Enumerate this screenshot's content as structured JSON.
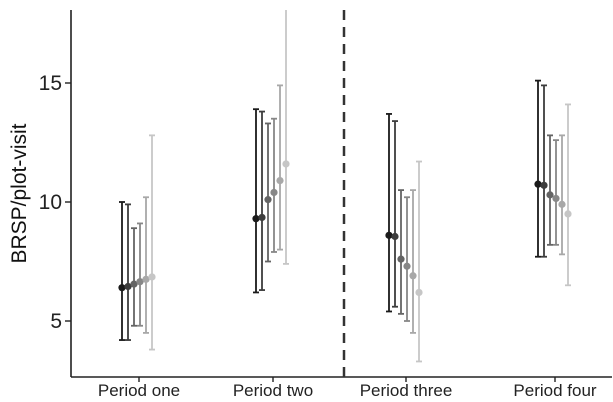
{
  "chart_data": {
    "type": "scatter",
    "title": "",
    "xlabel": "",
    "ylabel": "BRSP/plot-visit",
    "categories": [
      "Period one",
      "Period two",
      "Period three",
      "Period four"
    ],
    "y_ticks": [
      5,
      10,
      15
    ],
    "ylim": [
      1.9,
      18.3
    ],
    "grid": false,
    "legend": "none",
    "divider_after_category": "Period two",
    "shade_colors": [
      "#1a1a1a",
      "#3d3d3d",
      "#646464",
      "#878787",
      "#a8a8a8",
      "#c6c6c6"
    ],
    "groups": [
      {
        "category": "Period one",
        "points": [
          {
            "y": 6.4,
            "lo": 4.2,
            "hi": 10.0
          },
          {
            "y": 6.45,
            "lo": 4.2,
            "hi": 9.9
          },
          {
            "y": 6.55,
            "lo": 4.8,
            "hi": 8.9
          },
          {
            "y": 6.65,
            "lo": 4.8,
            "hi": 9.1
          },
          {
            "y": 6.75,
            "lo": 4.5,
            "hi": 10.2
          },
          {
            "y": 6.85,
            "lo": 3.8,
            "hi": 12.8
          }
        ]
      },
      {
        "category": "Period two",
        "points": [
          {
            "y": 9.3,
            "lo": 6.2,
            "hi": 13.9
          },
          {
            "y": 9.35,
            "lo": 6.3,
            "hi": 13.8
          },
          {
            "y": 10.1,
            "lo": 7.5,
            "hi": 13.3
          },
          {
            "y": 10.4,
            "lo": 7.9,
            "hi": 13.5
          },
          {
            "y": 10.9,
            "lo": 8.0,
            "hi": 14.9
          },
          {
            "y": 11.6,
            "lo": 7.4,
            "hi": 18.3
          }
        ]
      },
      {
        "category": "Period three",
        "points": [
          {
            "y": 8.6,
            "lo": 5.4,
            "hi": 13.7
          },
          {
            "y": 8.55,
            "lo": 5.6,
            "hi": 13.4
          },
          {
            "y": 7.6,
            "lo": 5.3,
            "hi": 10.5
          },
          {
            "y": 7.3,
            "lo": 5.0,
            "hi": 10.2
          },
          {
            "y": 6.9,
            "lo": 4.5,
            "hi": 10.5
          },
          {
            "y": 6.2,
            "lo": 3.3,
            "hi": 11.7
          }
        ]
      },
      {
        "category": "Period four",
        "points": [
          {
            "y": 10.75,
            "lo": 7.7,
            "hi": 15.1
          },
          {
            "y": 10.7,
            "lo": 7.7,
            "hi": 14.9
          },
          {
            "y": 10.3,
            "lo": 8.2,
            "hi": 12.8
          },
          {
            "y": 10.15,
            "lo": 8.2,
            "hi": 12.6
          },
          {
            "y": 9.9,
            "lo": 7.8,
            "hi": 12.8
          },
          {
            "y": 9.5,
            "lo": 6.5,
            "hi": 14.1
          }
        ]
      }
    ]
  }
}
